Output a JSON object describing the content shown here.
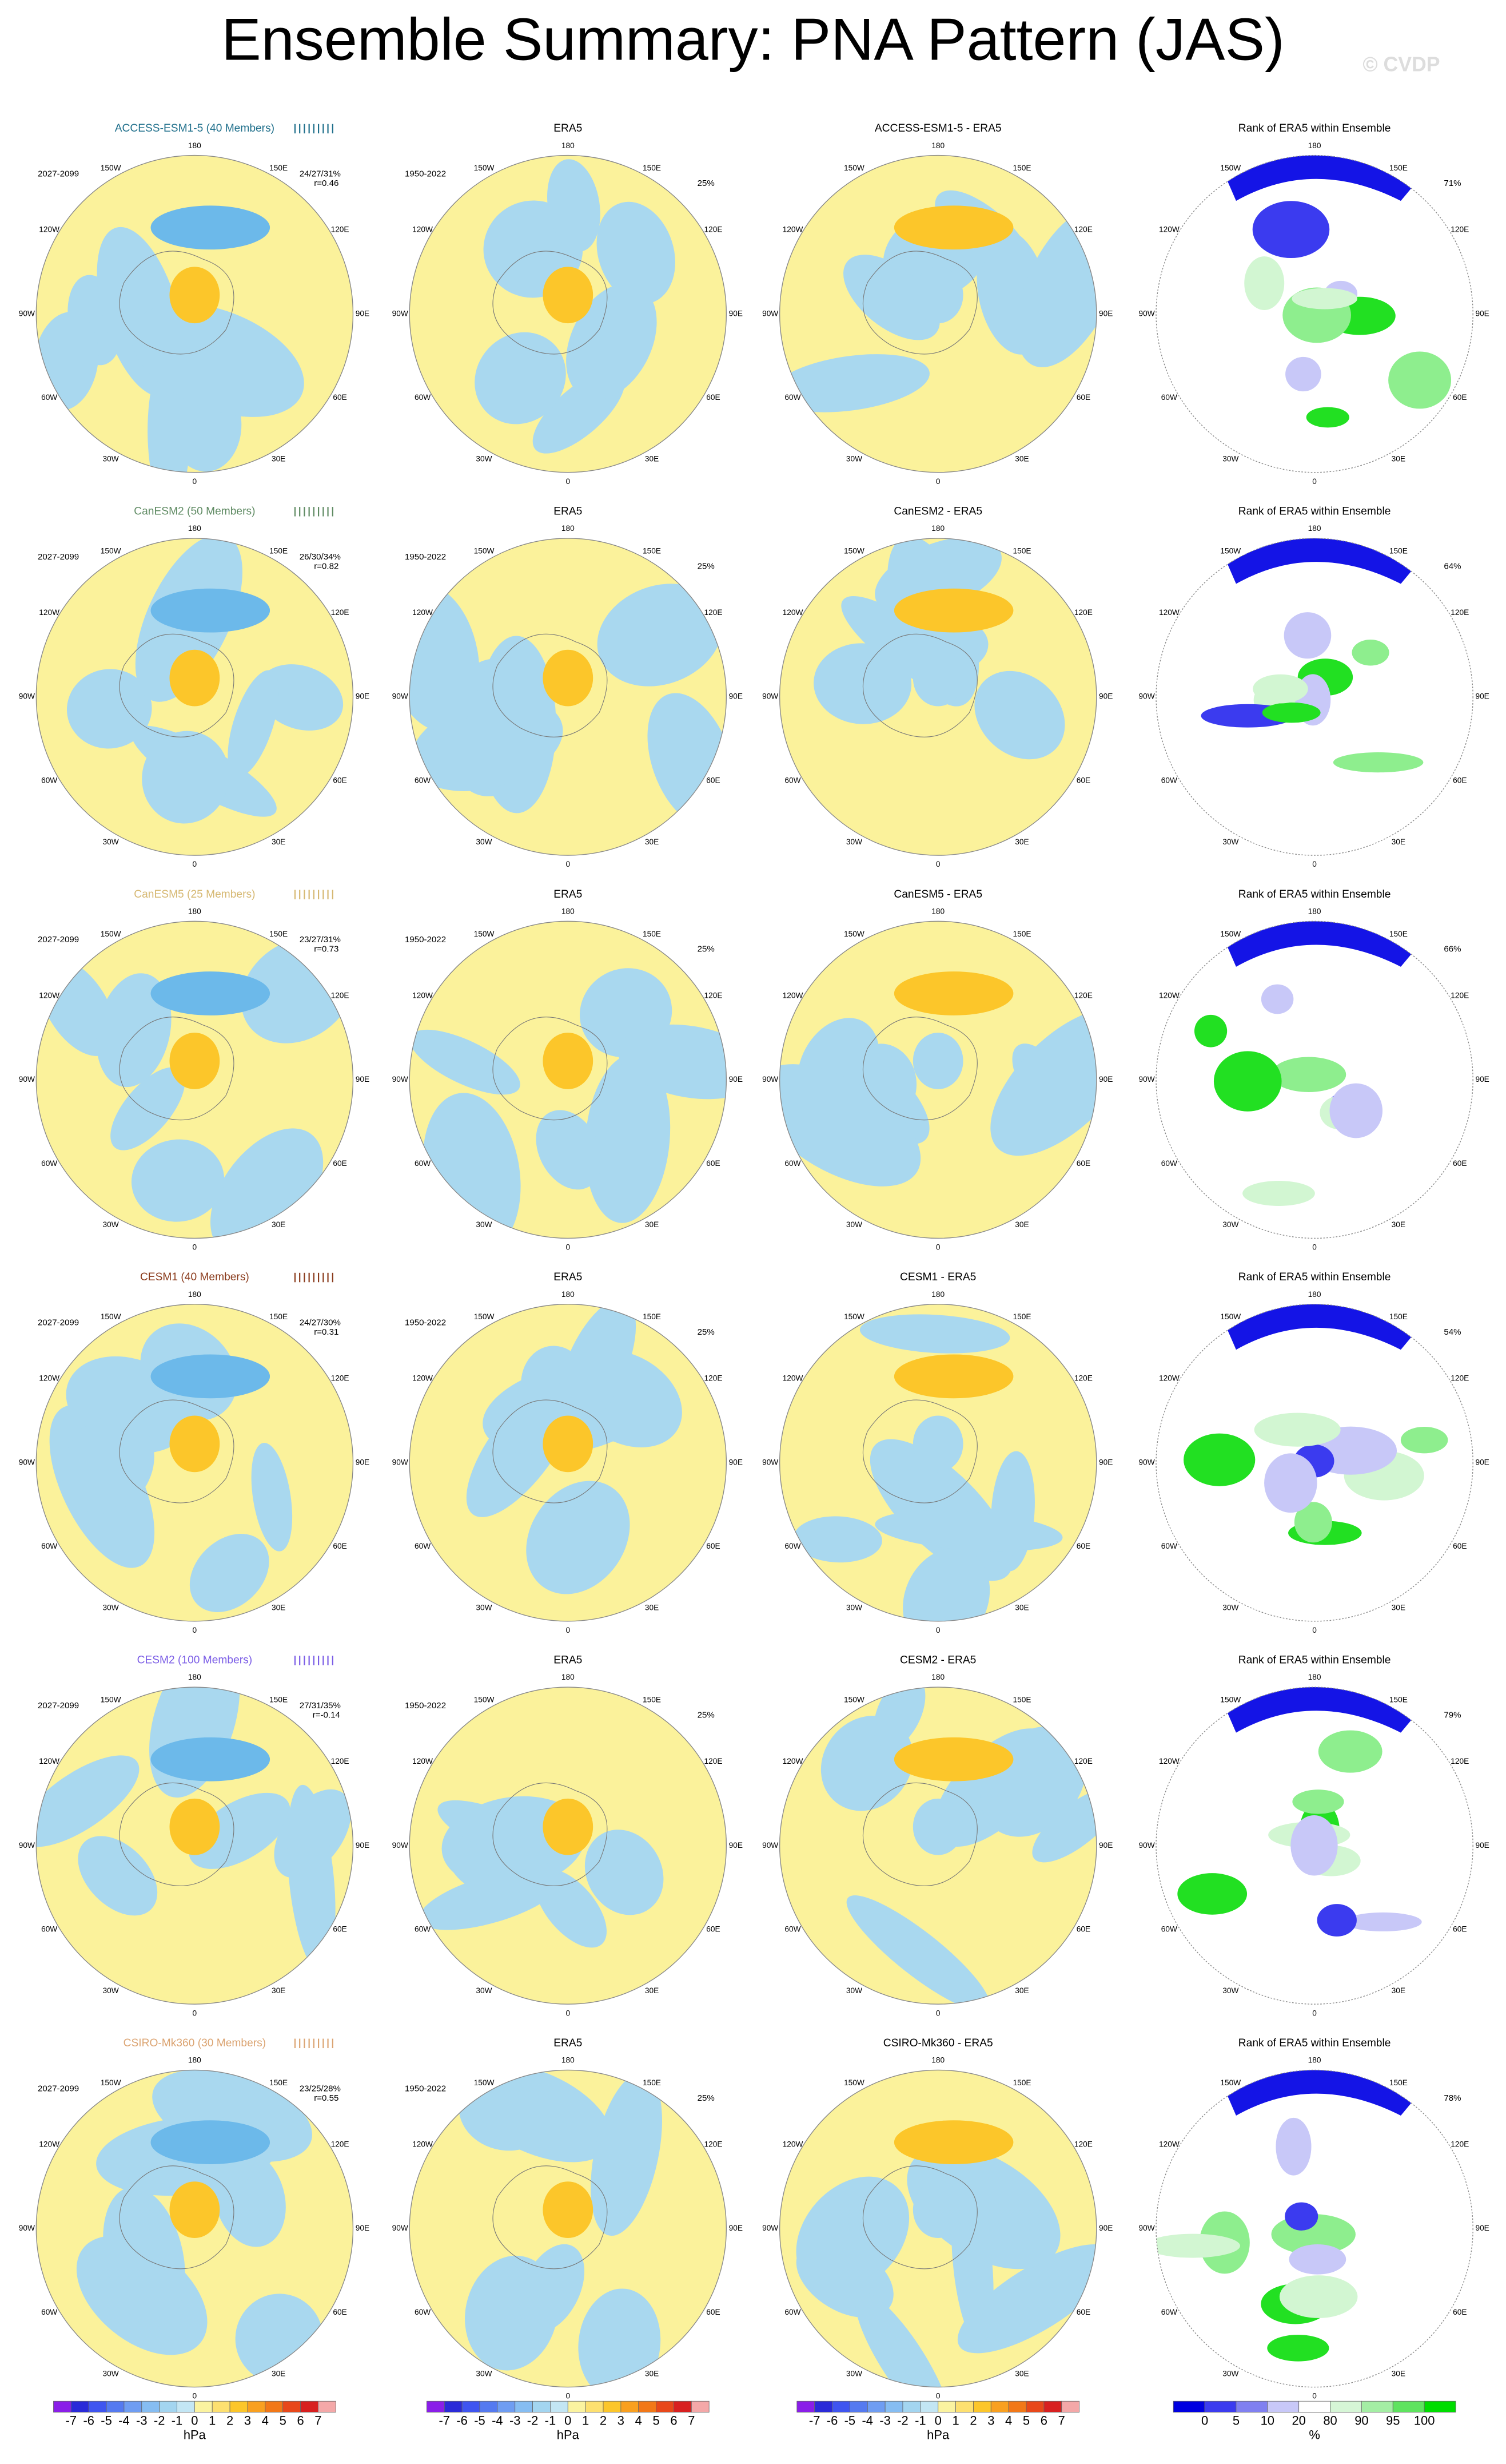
{
  "title": "Ensemble Summary: PNA Pattern (JAS)",
  "watermark": "© CVDP",
  "lon_labels": [
    "180",
    "150E",
    "120E",
    "90E",
    "60E",
    "30E",
    "0",
    "30W",
    "60W",
    "90W",
    "120W",
    "150W"
  ],
  "rows": [
    {
      "model": "ACCESS-ESM1-5 (40 Members)",
      "color": "#1f6f8b",
      "period": "2027-2099",
      "stats": "24/27/31%",
      "r": "r=0.46",
      "obs_title": "ERA5",
      "obs_period": "1950-2022",
      "obs_pct": "25%",
      "diff_title": "ACCESS-ESM1-5 - ERA5",
      "rank_title": "Rank of ERA5 within Ensemble",
      "rank_pct": "71%"
    },
    {
      "model": "CanESM2 (50 Members)",
      "color": "#5e8a62",
      "period": "2027-2099",
      "stats": "26/30/34%",
      "r": "r=0.82",
      "obs_title": "ERA5",
      "obs_period": "1950-2022",
      "obs_pct": "25%",
      "diff_title": "CanESM2 - ERA5",
      "rank_title": "Rank of ERA5 within Ensemble",
      "rank_pct": "64%"
    },
    {
      "model": "CanESM5 (25 Members)",
      "color": "#d6b872",
      "period": "2027-2099",
      "stats": "23/27/31%",
      "r": "r=0.73",
      "obs_title": "ERA5",
      "obs_period": "1950-2022",
      "obs_pct": "25%",
      "diff_title": "CanESM5 - ERA5",
      "rank_title": "Rank of ERA5 within Ensemble",
      "rank_pct": "66%"
    },
    {
      "model": "CESM1 (40 Members)",
      "color": "#8a3b1c",
      "period": "2027-2099",
      "stats": "24/27/30%",
      "r": "r=0.31",
      "obs_title": "ERA5",
      "obs_period": "1950-2022",
      "obs_pct": "25%",
      "diff_title": "CESM1 - ERA5",
      "rank_title": "Rank of ERA5 within Ensemble",
      "rank_pct": "54%"
    },
    {
      "model": "CESM2 (100 Members)",
      "color": "#7a5ce6",
      "period": "2027-2099",
      "stats": "27/31/35%",
      "r": "r=-0.14",
      "obs_title": "ERA5",
      "obs_period": "1950-2022",
      "obs_pct": "25%",
      "diff_title": "CESM2 - ERA5",
      "rank_title": "Rank of ERA5 within Ensemble",
      "rank_pct": "79%"
    },
    {
      "model": "CSIRO-Mk360 (30 Members)",
      "color": "#dba472",
      "period": "2027-2099",
      "stats": "23/25/28%",
      "r": "r=0.55",
      "obs_title": "ERA5",
      "obs_period": "1950-2022",
      "obs_pct": "25%",
      "diff_title": "CSIRO-Mk360 - ERA5",
      "rank_title": "Rank of ERA5 within Ensemble",
      "rank_pct": "78%"
    }
  ],
  "hpa_colorbar": {
    "units": "hPa",
    "ticks": [
      -7,
      -6,
      -5,
      -4,
      -3,
      -2,
      -1,
      0,
      1,
      2,
      3,
      4,
      5,
      6,
      7
    ],
    "colors": [
      "#8a1ee8",
      "#2a2ad8",
      "#3f55f0",
      "#557af0",
      "#6f9df2",
      "#86bdf2",
      "#a3d5f0",
      "#c3e6f4",
      "#fbf3a0",
      "#fde070",
      "#fcc62a",
      "#f9a020",
      "#f27818",
      "#e8481a",
      "#d82020",
      "#f4a8a8"
    ]
  },
  "rank_colorbar": {
    "units": "%",
    "ticks": [
      0,
      5,
      10,
      20,
      80,
      90,
      95,
      100
    ],
    "colors": [
      "#0000e0",
      "#3b3bef",
      "#8080f0",
      "#c8c8f8",
      "#ffffff",
      "#d6f6d6",
      "#a4eea4",
      "#5fe35f",
      "#00dd00"
    ]
  }
}
